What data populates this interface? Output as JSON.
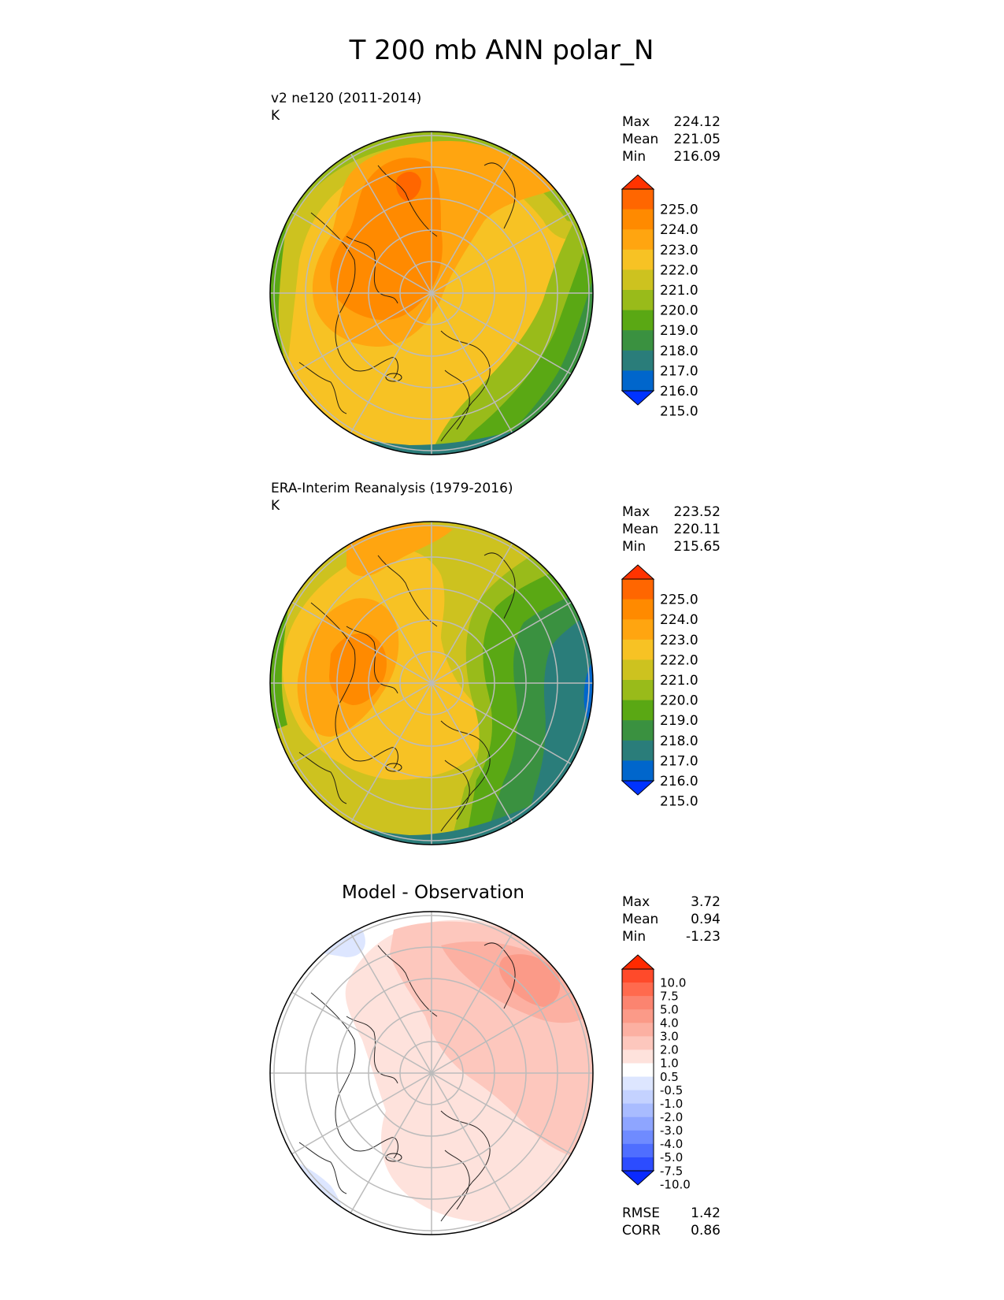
{
  "figure": {
    "title": "T 200 mb ANN polar_N",
    "panels": [
      {
        "id": "test",
        "subtitle": "v2 ne120 (2011-2014)",
        "units": "K",
        "stats": [
          {
            "label": "Max",
            "value": "224.12"
          },
          {
            "label": "Mean",
            "value": "221.05"
          },
          {
            "label": "Min",
            "value": "216.09"
          }
        ]
      },
      {
        "id": "ref",
        "subtitle": "ERA-Interim Reanalysis (1979-2016)",
        "units": "K",
        "stats": [
          {
            "label": "Max",
            "value": "223.52"
          },
          {
            "label": "Mean",
            "value": "220.11"
          },
          {
            "label": "Min",
            "value": "215.65"
          }
        ]
      },
      {
        "id": "diff",
        "title": "Model - Observation",
        "stats": [
          {
            "label": "Max",
            "value": "3.72"
          },
          {
            "label": "Mean",
            "value": "0.94"
          },
          {
            "label": "Min",
            "value": "-1.23"
          }
        ],
        "footer_stats": [
          {
            "label": "RMSE",
            "value": "1.42"
          },
          {
            "label": "CORR",
            "value": "0.86"
          }
        ]
      }
    ]
  },
  "chart_data": [
    {
      "type": "heatmap",
      "projection": "north-polar-stereographic",
      "title": "v2 ne120 (2011-2014)",
      "units": "K",
      "colorbar": {
        "levels": [
          215.0,
          216.0,
          217.0,
          218.0,
          219.0,
          220.0,
          221.0,
          222.0,
          223.0,
          224.0,
          225.0
        ],
        "tick_labels": [
          "225.0",
          "224.0",
          "223.0",
          "222.0",
          "221.0",
          "220.0",
          "219.0",
          "218.0",
          "217.0",
          "216.0",
          "215.0"
        ],
        "colors_top_to_bottom": [
          "#ff3300",
          "#ff6600",
          "#ff8a00",
          "#ffa510",
          "#f7c224",
          "#cdc21f",
          "#99bb1a",
          "#5aa814",
          "#3a9140",
          "#2a7d7a",
          "#0066cc",
          "#0033ff"
        ],
        "extend": "both"
      },
      "max": 224.12,
      "mean": 221.05,
      "min": 216.09
    },
    {
      "type": "heatmap",
      "projection": "north-polar-stereographic",
      "title": "ERA-Interim Reanalysis (1979-2016)",
      "units": "K",
      "colorbar": {
        "levels": [
          215.0,
          216.0,
          217.0,
          218.0,
          219.0,
          220.0,
          221.0,
          222.0,
          223.0,
          224.0,
          225.0
        ],
        "tick_labels": [
          "225.0",
          "224.0",
          "223.0",
          "222.0",
          "221.0",
          "220.0",
          "219.0",
          "218.0",
          "217.0",
          "216.0",
          "215.0"
        ],
        "colors_top_to_bottom": [
          "#ff3300",
          "#ff6600",
          "#ff8a00",
          "#ffa510",
          "#f7c224",
          "#cdc21f",
          "#99bb1a",
          "#5aa814",
          "#3a9140",
          "#2a7d7a",
          "#0066cc",
          "#0033ff"
        ],
        "extend": "both"
      },
      "max": 223.52,
      "mean": 220.11,
      "min": 215.65
    },
    {
      "type": "heatmap",
      "projection": "north-polar-stereographic",
      "title": "Model - Observation",
      "colorbar": {
        "levels": [
          -10.0,
          -7.5,
          -5.0,
          -4.0,
          -3.0,
          -2.0,
          -1.0,
          -0.5,
          0.5,
          1.0,
          2.0,
          3.0,
          4.0,
          5.0,
          7.5,
          10.0
        ],
        "tick_labels": [
          "10.0",
          "7.5",
          "5.0",
          "4.0",
          "3.0",
          "2.0",
          "1.0",
          "0.5",
          "-0.5",
          "-1.0",
          "-2.0",
          "-3.0",
          "-4.0",
          "-5.0",
          "-7.5",
          "-10.0"
        ],
        "colors_top_to_bottom": [
          "#ff2a00",
          "#ff4a2a",
          "#ff6a4e",
          "#fb8470",
          "#fb9a88",
          "#fcb0a2",
          "#fdc7bd",
          "#fee2dc",
          "#ffffff",
          "#dde6ff",
          "#c4d2ff",
          "#a9bcff",
          "#8ea5ff",
          "#6f8bff",
          "#4f6eff",
          "#2c4cff",
          "#0a2aff"
        ],
        "extend": "both"
      },
      "max": 3.72,
      "mean": 0.94,
      "min": -1.23,
      "rmse": 1.42,
      "corr": 0.86
    }
  ]
}
